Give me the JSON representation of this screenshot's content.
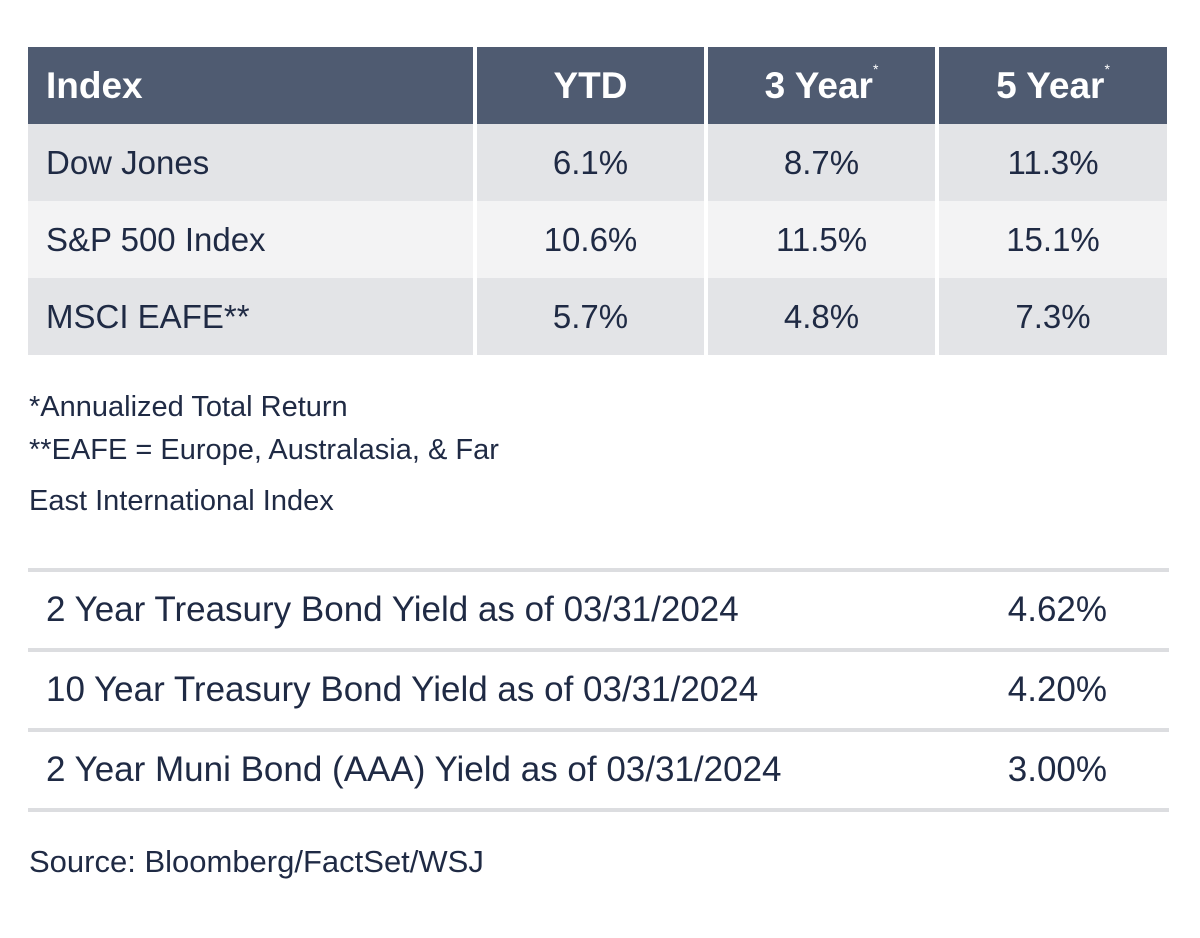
{
  "returns_table": {
    "headers": {
      "index": "Index",
      "ytd": "YTD",
      "three_year": "3 Year",
      "three_year_mark": "*",
      "five_year": "5 Year",
      "five_year_mark": "*"
    },
    "rows": [
      {
        "name": "Dow Jones",
        "ytd": "6.1%",
        "three_year": "8.7%",
        "five_year": "11.3%"
      },
      {
        "name": "S&P 500 Index",
        "ytd": "10.6%",
        "three_year": "11.5%",
        "five_year": "15.1%"
      },
      {
        "name": "MSCI EAFE**",
        "ytd": "5.7%",
        "three_year": "4.8%",
        "five_year": "7.3%"
      }
    ],
    "colors": {
      "header_bg": "#4f5b71",
      "row_shade": "#e3e4e7",
      "row_light": "#f3f3f4"
    }
  },
  "footnotes": {
    "line1": "*Annualized Total Return",
    "line2": "**EAFE = Europe, Australasia, & Far",
    "line3": "East International Index"
  },
  "yields": [
    {
      "label": "2 Year Treasury Bond Yield as of 03/31/2024",
      "value": "4.62%"
    },
    {
      "label": "10 Year Treasury Bond Yield as of 03/31/2024",
      "value": "4.20%"
    },
    {
      "label": "2 Year Muni Bond (AAA) Yield as of 03/31/2024",
      "value": "3.00%"
    }
  ],
  "source": "Source: Bloomberg/FactSet/WSJ"
}
